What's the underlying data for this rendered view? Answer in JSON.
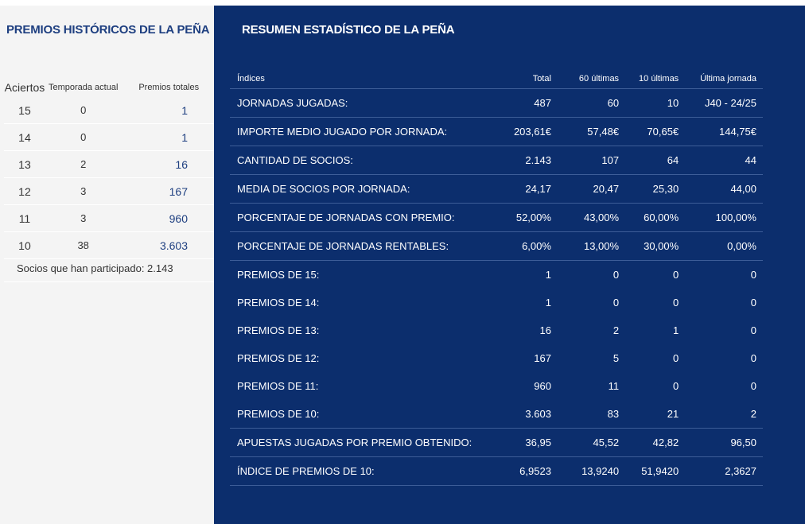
{
  "left": {
    "title": "PREMIOS HISTÓRICOS DE LA PEÑA",
    "headers": [
      "Aciertos",
      "Temporada actual",
      "Premios totales"
    ],
    "rows": [
      {
        "aciertos": "15",
        "temporada": "0",
        "totales": "1"
      },
      {
        "aciertos": "14",
        "temporada": "0",
        "totales": "1"
      },
      {
        "aciertos": "13",
        "temporada": "2",
        "totales": "16"
      },
      {
        "aciertos": "12",
        "temporada": "3",
        "totales": "167"
      },
      {
        "aciertos": "11",
        "temporada": "3",
        "totales": "960"
      },
      {
        "aciertos": "10",
        "temporada": "38",
        "totales": "3.603"
      }
    ],
    "footer": "Socios que han participado: 2.143"
  },
  "right": {
    "title": "RESUMEN ESTADÍSTICO DE LA PEÑA",
    "headers": [
      "Índices",
      "Total",
      "60 últimas",
      "10 últimas",
      "Última jornada"
    ],
    "rows": [
      {
        "label": "JORNADAS JUGADAS:",
        "total": "487",
        "last60": "60",
        "last10": "10",
        "last": "J40 - 24/25"
      },
      {
        "label": "IMPORTE MEDIO JUGADO POR JORNADA:",
        "total": "203,61€",
        "last60": "57,48€",
        "last10": "70,65€",
        "last": "144,75€"
      },
      {
        "label": "CANTIDAD DE SOCIOS:",
        "total": "2.143",
        "last60": "107",
        "last10": "64",
        "last": "44"
      },
      {
        "label": "MEDIA DE SOCIOS POR JORNADA:",
        "total": "24,17",
        "last60": "20,47",
        "last10": "25,30",
        "last": "44,00"
      },
      {
        "label": "PORCENTAJE DE JORNADAS CON PREMIO:",
        "total": "52,00%",
        "last60": "43,00%",
        "last10": "60,00%",
        "last": "100,00%"
      },
      {
        "label": "PORCENTAJE DE JORNADAS RENTABLES:",
        "total": "6,00%",
        "last60": "13,00%",
        "last10": "30,00%",
        "last": "0,00%"
      },
      {
        "label": "PREMIOS DE 15:",
        "total": "1",
        "last60": "0",
        "last10": "0",
        "last": "0"
      },
      {
        "label": "PREMIOS DE 14:",
        "total": "1",
        "last60": "0",
        "last10": "0",
        "last": "0"
      },
      {
        "label": "PREMIOS DE 13:",
        "total": "16",
        "last60": "2",
        "last10": "1",
        "last": "0"
      },
      {
        "label": "PREMIOS DE 12:",
        "total": "167",
        "last60": "5",
        "last10": "0",
        "last": "0"
      },
      {
        "label": "PREMIOS DE 11:",
        "total": "960",
        "last60": "11",
        "last10": "0",
        "last": "0"
      },
      {
        "label": "PREMIOS DE 10:",
        "total": "3.603",
        "last60": "83",
        "last10": "21",
        "last": "2"
      },
      {
        "label": "APUESTAS JUGADAS POR PREMIO OBTENIDO:",
        "total": "36,95",
        "last60": "45,52",
        "last10": "42,82",
        "last": "96,50"
      },
      {
        "label": "ÍNDICE DE PREMIOS DE 10:",
        "total": "6,9523",
        "last60": "13,9240",
        "last10": "51,9420",
        "last": "2,3627"
      }
    ]
  },
  "colors": {
    "navy": "#0c2e6d",
    "title_blue": "#1e3f80",
    "left_bg": "#f4f4f4"
  }
}
